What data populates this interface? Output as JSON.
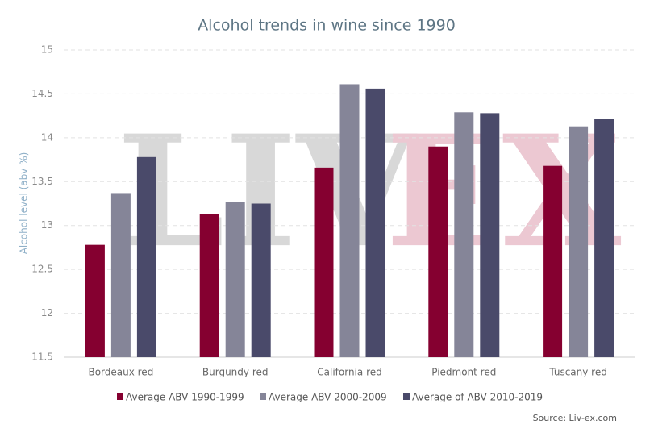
{
  "chart_data": {
    "type": "bar",
    "title": "Alcohol trends in wine since 1990",
    "y_label": "Alcohol level (abv %)",
    "source": "Source: Liv-ex.com",
    "watermark": [
      "LIV",
      "EX"
    ],
    "categories": [
      "Bordeaux red",
      "Burgundy red",
      "California red",
      "Piedmont red",
      "Tuscany red"
    ],
    "series": [
      {
        "name": "Average ABV 1990-1999",
        "color": "#850030",
        "values": [
          12.78,
          13.13,
          13.66,
          13.9,
          13.68
        ]
      },
      {
        "name": "Average ABV 2000-2009",
        "color": "#858598",
        "values": [
          13.37,
          13.27,
          14.61,
          14.29,
          14.13
        ]
      },
      {
        "name": "Average of ABV 2010-2019",
        "color": "#4a4a6a",
        "values": [
          13.78,
          13.25,
          14.56,
          14.28,
          14.21
        ]
      }
    ],
    "ylim": [
      11.5,
      15
    ],
    "yticks": [
      11.5,
      12,
      12.5,
      13,
      13.5,
      14,
      14.5,
      15
    ],
    "grid": true,
    "legend": "bottom"
  }
}
